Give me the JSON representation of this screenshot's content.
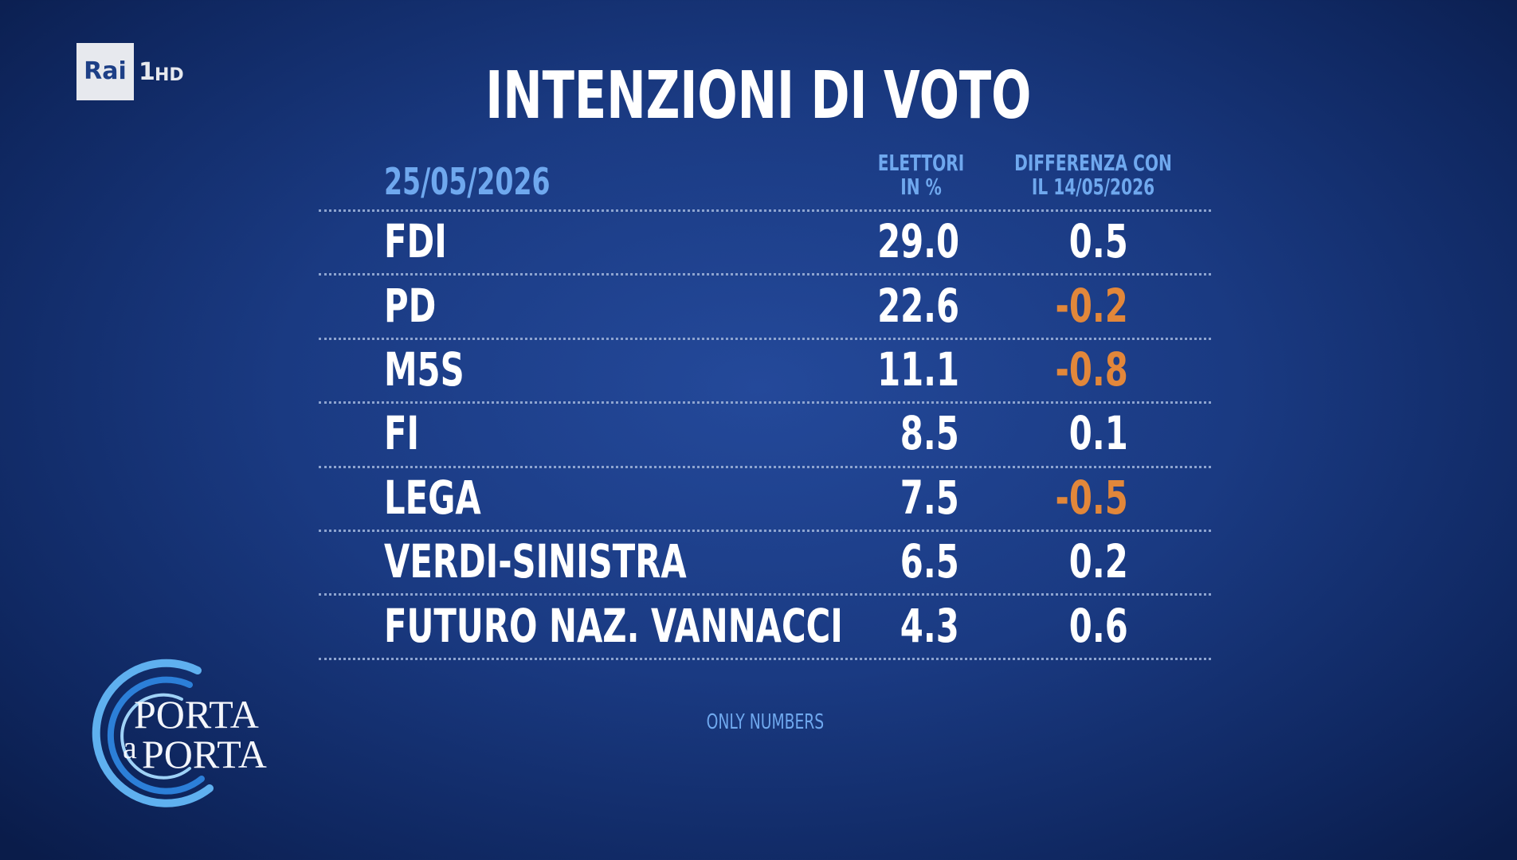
{
  "logo": {
    "brand": "Rai",
    "channel": "1",
    "quality": "HD"
  },
  "title": "INTENZIONI DI VOTO",
  "table": {
    "date": "25/05/2026",
    "columns": [
      [
        "ELETTORI",
        "IN %"
      ],
      [
        "DIFFERENZA CON",
        "IL 14/05/2026"
      ]
    ],
    "rows": [
      [
        "FDI",
        "29.0",
        "0.5"
      ],
      [
        "PD",
        "22.6",
        "-0.2"
      ],
      [
        "M5S",
        "11.1",
        "-0.8"
      ],
      [
        "FI",
        "8.5",
        "0.1"
      ],
      [
        "LEGA",
        "7.5",
        "-0.5"
      ],
      [
        "VERDI-SINISTRA",
        "6.5",
        "0.2"
      ],
      [
        "FUTURO NAZ. VANNACCI",
        "4.3",
        "0.6"
      ]
    ]
  },
  "footer": "ONLY NUMBERS",
  "show_logo": {
    "line1": "PORTA",
    "a": "a",
    "line2": "PORTA"
  }
}
